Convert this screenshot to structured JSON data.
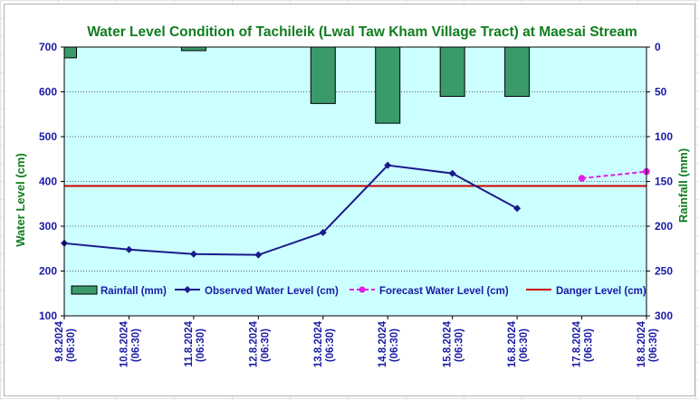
{
  "chart_data": {
    "type": "line",
    "title": "Water Level Condition of Tachileik (Lwal Taw Kham Village Tract) at Maesai Stream",
    "ylabel": "Water Level (cm)",
    "y2label": "Rainfall (mm)",
    "ylim": [
      100,
      700
    ],
    "y2lim": [
      0,
      300
    ],
    "y2_inverted": true,
    "yticks": [
      100,
      200,
      300,
      400,
      500,
      600,
      700
    ],
    "y2ticks": [
      0,
      50,
      100,
      150,
      200,
      250,
      300
    ],
    "categories": [
      "9.8.2024 (06:30)",
      "10.8.2024 (06:30)",
      "11.8.2024 (06:30)",
      "12.8.2024 (06:30)",
      "13.8.2024 (06:30)",
      "14.8.2024 (06:30)",
      "15.8.2024 (06:30)",
      "16.8.2024 (06:30)",
      "17.8.2024 (06:30)",
      "18.8.2024 (06:30)"
    ],
    "category_lines": [
      [
        "9.8.2024",
        "(06:30)"
      ],
      [
        "10.8.2024",
        "(06:30)"
      ],
      [
        "11.8.2024",
        "(06:30)"
      ],
      [
        "12.8.2024",
        "(06:30)"
      ],
      [
        "13.8.2024",
        "(06:30)"
      ],
      [
        "14.8.2024",
        "(06:30)"
      ],
      [
        "15.8.2024",
        "(06:30)"
      ],
      [
        "16.8.2024",
        "(06:30)"
      ],
      [
        "17.8.2024",
        "(06:30)"
      ],
      [
        "18.8.2024",
        "(06:30)"
      ]
    ],
    "series": [
      {
        "name": "Rainfall (mm)",
        "kind": "bar",
        "axis": "right",
        "color": "#3a9a6a",
        "values": [
          12,
          0,
          4,
          0,
          63,
          85,
          55,
          55,
          0,
          0
        ]
      },
      {
        "name": "Observed Water Level (cm)",
        "kind": "line",
        "axis": "left",
        "color": "#1a1a8c",
        "values": [
          262,
          248,
          238,
          236,
          286,
          436,
          418,
          340,
          null,
          null
        ]
      },
      {
        "name": "Forecast Water Level (cm)",
        "kind": "line-dashed",
        "axis": "left",
        "color": "#e020e0",
        "values": [
          null,
          null,
          null,
          null,
          null,
          null,
          null,
          null,
          407,
          422
        ]
      },
      {
        "name": "Danger Level (cm)",
        "kind": "hline",
        "axis": "left",
        "color": "#cc0000",
        "value": 390
      }
    ],
    "grid": true,
    "legend": "bottom-inside",
    "plot_background": "#ccffff"
  }
}
